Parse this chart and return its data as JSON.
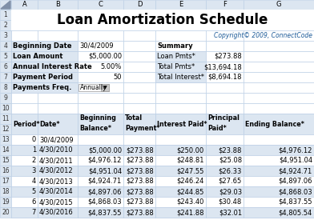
{
  "title": "Loan Amortization Schedule",
  "copyright": "Copyright© 2009, ConnectCode",
  "col_headers": [
    "A",
    "B",
    "C",
    "D",
    "E",
    "F",
    "G"
  ],
  "left_labels": [
    [
      "Beginning Date",
      "30/4/2009"
    ],
    [
      "Loan Amount",
      "$5,000.00"
    ],
    [
      "Annual Interest Rate",
      "5.00%"
    ],
    [
      "Payment Period",
      "50"
    ],
    [
      "Payments Freq.",
      "Annually"
    ]
  ],
  "summary_labels": [
    [
      "Summary",
      ""
    ],
    [
      "Loan Pmts*",
      "$273.88"
    ],
    [
      "Total Pmts*",
      "$13,694.18"
    ],
    [
      "Total Interest*",
      "$8,694.18"
    ]
  ],
  "table_headers_line1": [
    "Period*",
    "Date*",
    "Beginning",
    "Total",
    "Interest Paid*",
    "Principal",
    "Ending Balance*"
  ],
  "table_headers_line2": [
    "",
    "",
    "Balance*",
    "Payment*",
    "",
    "Paid*",
    ""
  ],
  "table_data": [
    [
      "0",
      "30/4/2009",
      "",
      "",
      "",
      "",
      ""
    ],
    [
      "1",
      "4/30/2010",
      "$5,000.00",
      "$273.88",
      "$250.00",
      "$23.88",
      "$4,976.12"
    ],
    [
      "2",
      "4/30/2011",
      "$4,976.12",
      "$273.88",
      "$248.81",
      "$25.08",
      "$4,951.04"
    ],
    [
      "3",
      "4/30/2012",
      "$4,951.04",
      "$273.88",
      "$247.55",
      "$26.33",
      "$4,924.71"
    ],
    [
      "4",
      "4/30/2013",
      "$4,924.71",
      "$273.88",
      "$246.24",
      "$27.65",
      "$4,897.06"
    ],
    [
      "5",
      "4/30/2014",
      "$4,897.06",
      "$273.88",
      "$244.85",
      "$29.03",
      "$4,868.03"
    ],
    [
      "6",
      "4/30/2015",
      "$4,868.03",
      "$273.88",
      "$243.40",
      "$30.48",
      "$4,837.55"
    ],
    [
      "7",
      "4/30/2016",
      "$4,837.55",
      "$273.88",
      "$241.88",
      "$32.01",
      "$4,805.54"
    ]
  ],
  "grid_color": "#b8cce4",
  "title_color": "#000000",
  "copyright_color": "#1f5c99",
  "col_header_bg": "#dce6f1",
  "row_num_bg": "#dce6f1",
  "info_label_bg": "#dce6f1",
  "info_val_bg": "#ffffff",
  "table_hdr_bg": "#dce6f1",
  "data_odd_bg": "#dce6f1",
  "data_even_bg": "#ffffff",
  "white": "#ffffff"
}
